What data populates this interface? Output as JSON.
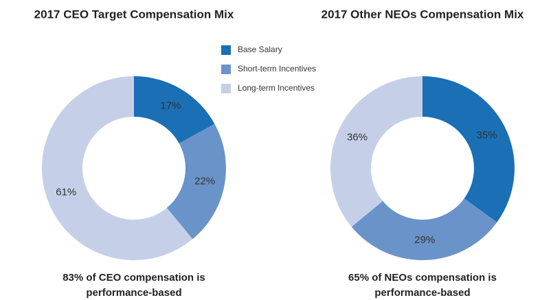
{
  "chart_data": [
    {
      "type": "donut",
      "title": "2017 CEO Target Compensation Mix",
      "categories": [
        "Base Salary",
        "Short-term Incentives",
        "Long-term Incentives"
      ],
      "values": [
        17,
        22,
        61
      ],
      "value_labels": [
        "17%",
        "22%",
        "61%"
      ],
      "colors": [
        "#1a6fb5",
        "#6a93c9",
        "#c5d0e8"
      ],
      "caption": [
        "83% of CEO compensation is",
        "performance-based"
      ]
    },
    {
      "type": "donut",
      "title": "2017 Other NEOs Compensation Mix",
      "categories": [
        "Base Salary",
        "Short-term Incentives",
        "Long-term Incentives"
      ],
      "values": [
        35,
        29,
        36
      ],
      "value_labels": [
        "35%",
        "29%",
        "36%"
      ],
      "colors": [
        "#1a6fb5",
        "#6a93c9",
        "#c5d0e8"
      ],
      "caption": [
        "65% of NEOs compensation is",
        "performance-based"
      ]
    }
  ]
}
